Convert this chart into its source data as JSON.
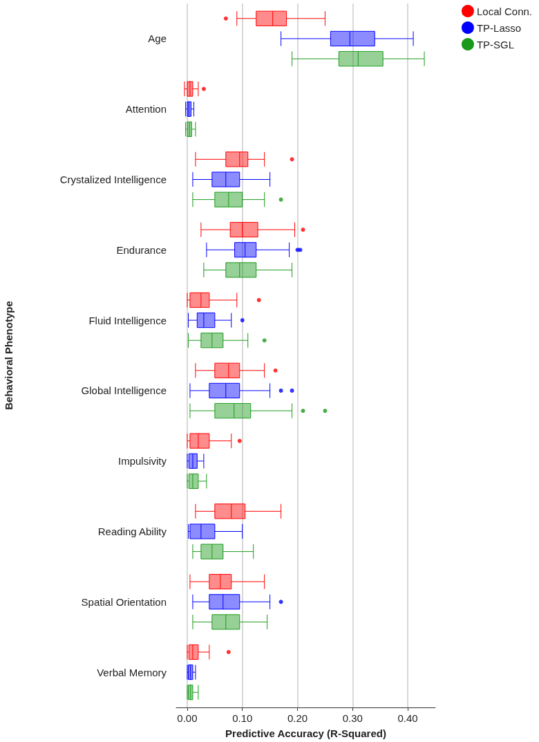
{
  "chart_data": {
    "type": "box",
    "orientation": "horizontal",
    "xlabel": "Predictive Accuracy (R-Squared)",
    "ylabel": "Behavioral Phenotype",
    "categories": [
      "Age",
      "Attention",
      "Crystalized Intelligence",
      "Endurance",
      "Fluid Intelligence",
      "Global Intelligence",
      "Impulsivity",
      "Reading Ability",
      "Spatial Orientation",
      "Verbal Memory"
    ],
    "xlim": [
      -0.02,
      0.45
    ],
    "xticks": [
      {
        "value": 0,
        "label": "0.00"
      },
      {
        "value": 0.1,
        "label": "0.10"
      },
      {
        "value": 0.2,
        "label": "0.20"
      },
      {
        "value": 0.3,
        "label": "0.30"
      },
      {
        "value": 0.4,
        "label": "0.40"
      }
    ],
    "grid": "x",
    "legend": "top right",
    "series": [
      {
        "name": "Local Conn.",
        "color": "#ff0000",
        "boxes": [
          {
            "low": 0.09,
            "q1": 0.125,
            "median": 0.155,
            "q3": 0.18,
            "high": 0.25,
            "outliers": [
              0.07
            ]
          },
          {
            "low": -0.005,
            "q1": 0.0,
            "median": 0.005,
            "q3": 0.01,
            "high": 0.02,
            "outliers": [
              0.03
            ]
          },
          {
            "low": 0.015,
            "q1": 0.07,
            "median": 0.095,
            "q3": 0.11,
            "high": 0.14,
            "outliers": [
              0.19
            ]
          },
          {
            "low": 0.025,
            "q1": 0.078,
            "median": 0.1,
            "q3": 0.128,
            "high": 0.195,
            "outliers": [
              0.21
            ]
          },
          {
            "low": 0.0,
            "q1": 0.005,
            "median": 0.025,
            "q3": 0.04,
            "high": 0.09,
            "outliers": [
              0.13
            ]
          },
          {
            "low": 0.015,
            "q1": 0.05,
            "median": 0.075,
            "q3": 0.095,
            "high": 0.14,
            "outliers": [
              0.16
            ]
          },
          {
            "low": 0.0,
            "q1": 0.005,
            "median": 0.02,
            "q3": 0.04,
            "high": 0.08,
            "outliers": [
              0.095
            ]
          },
          {
            "low": 0.015,
            "q1": 0.05,
            "median": 0.08,
            "q3": 0.105,
            "high": 0.17
          },
          {
            "low": 0.005,
            "q1": 0.04,
            "median": 0.06,
            "q3": 0.08,
            "high": 0.14
          },
          {
            "low": 0.0,
            "q1": 0.003,
            "median": 0.01,
            "q3": 0.02,
            "high": 0.04,
            "outliers": [
              0.075
            ]
          }
        ]
      },
      {
        "name": "TP-Lasso",
        "color": "#0000ff",
        "boxes": [
          {
            "low": 0.17,
            "q1": 0.26,
            "median": 0.295,
            "q3": 0.34,
            "high": 0.41
          },
          {
            "low": -0.003,
            "q1": 0.0,
            "median": 0.003,
            "q3": 0.007,
            "high": 0.012
          },
          {
            "low": 0.01,
            "q1": 0.045,
            "median": 0.07,
            "q3": 0.095,
            "high": 0.15
          },
          {
            "low": 0.035,
            "q1": 0.086,
            "median": 0.105,
            "q3": 0.125,
            "high": 0.185,
            "outliers": [
              0.2,
              0.205
            ]
          },
          {
            "low": 0.002,
            "q1": 0.018,
            "median": 0.03,
            "q3": 0.05,
            "high": 0.08,
            "outliers": [
              0.1
            ]
          },
          {
            "low": 0.005,
            "q1": 0.04,
            "median": 0.07,
            "q3": 0.095,
            "high": 0.15,
            "outliers": [
              0.17,
              0.19
            ]
          },
          {
            "low": 0.0,
            "q1": 0.003,
            "median": 0.01,
            "q3": 0.018,
            "high": 0.03
          },
          {
            "low": 0.002,
            "q1": 0.005,
            "median": 0.025,
            "q3": 0.05,
            "high": 0.1
          },
          {
            "low": 0.01,
            "q1": 0.04,
            "median": 0.065,
            "q3": 0.095,
            "high": 0.15,
            "outliers": [
              0.17
            ]
          },
          {
            "low": 0.0,
            "q1": 0.002,
            "median": 0.006,
            "q3": 0.01,
            "high": 0.015
          }
        ]
      },
      {
        "name": "TP-SGL",
        "color": "#1a9a1a",
        "boxes": [
          {
            "low": 0.19,
            "q1": 0.275,
            "median": 0.31,
            "q3": 0.355,
            "high": 0.43
          },
          {
            "low": -0.003,
            "q1": 0.0,
            "median": 0.004,
            "q3": 0.008,
            "high": 0.015
          },
          {
            "low": 0.01,
            "q1": 0.05,
            "median": 0.075,
            "q3": 0.1,
            "high": 0.14,
            "outliers": [
              0.17
            ]
          },
          {
            "low": 0.03,
            "q1": 0.07,
            "median": 0.095,
            "q3": 0.125,
            "high": 0.19
          },
          {
            "low": 0.002,
            "q1": 0.025,
            "median": 0.045,
            "q3": 0.065,
            "high": 0.11,
            "outliers": [
              0.14
            ]
          },
          {
            "low": 0.005,
            "q1": 0.05,
            "median": 0.085,
            "q3": 0.115,
            "high": 0.19,
            "outliers": [
              0.21,
              0.25
            ]
          },
          {
            "low": 0.0,
            "q1": 0.003,
            "median": 0.01,
            "q3": 0.02,
            "high": 0.035
          },
          {
            "low": 0.01,
            "q1": 0.025,
            "median": 0.045,
            "q3": 0.065,
            "high": 0.12
          },
          {
            "low": 0.01,
            "q1": 0.045,
            "median": 0.07,
            "q3": 0.095,
            "high": 0.145
          },
          {
            "low": 0.0,
            "q1": 0.002,
            "median": 0.006,
            "q3": 0.01,
            "high": 0.02
          }
        ]
      }
    ]
  }
}
